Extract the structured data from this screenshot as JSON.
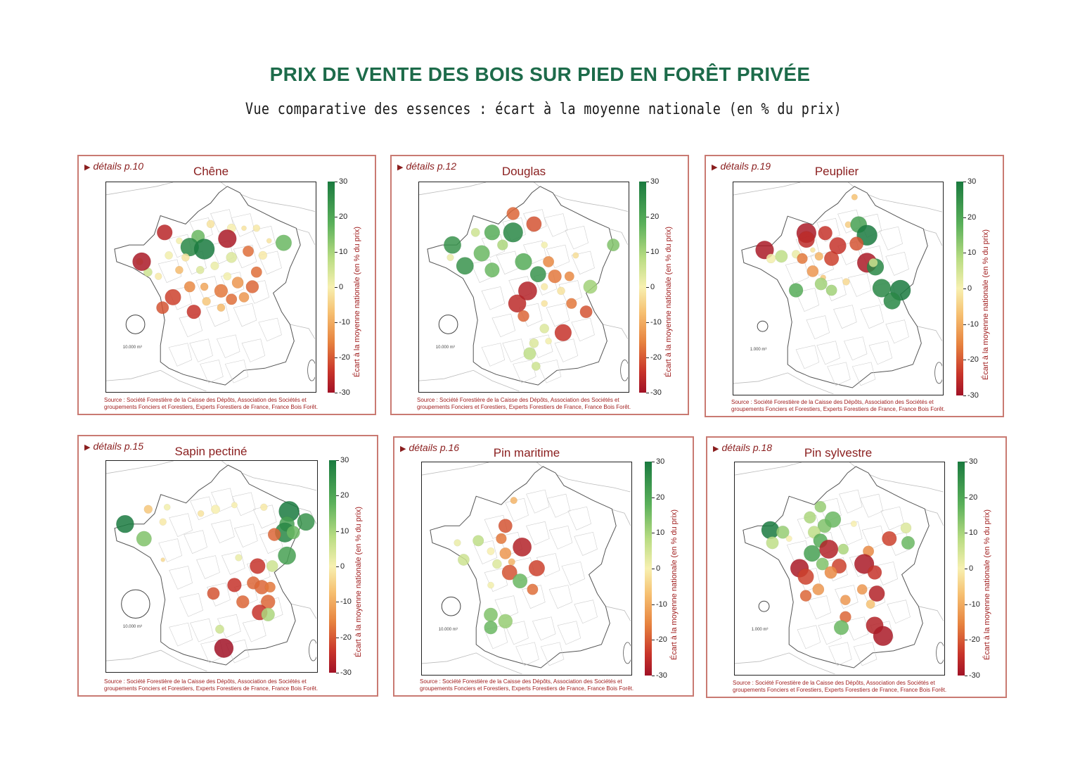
{
  "title": "PRIX DE VENTE DES BOIS SUR PIED EN FORÊT PRIVÉE",
  "subtitle": "Vue comparative des essences : écart à la moyenne nationale (en % du prix)",
  "colorbar": {
    "label": "Écart à la moyenne nationale (en % du prix)",
    "ticks": [
      "30",
      "20",
      "10",
      "0",
      "-10",
      "-20",
      "-30"
    ],
    "min": -30,
    "max": 30,
    "colors": [
      "#1a7a3f",
      "#5ab05a",
      "#b8dc82",
      "#f7f0b0",
      "#f6c071",
      "#e7833f",
      "#c8342a",
      "#a11226"
    ]
  },
  "source_line1": "Source : Société Forestière de la Caisse des Dépôts, Association des Sociétés et",
  "source_line2": "groupements Fonciers et Forestiers, Experts Forestiers de France, France Bois Forêt.",
  "panels": [
    {
      "species": "Chêne",
      "details": "détails p.10",
      "scale_label": "10.000 m³",
      "points": [
        {
          "x": 0.44,
          "y": 0.26,
          "v": 20
        },
        {
          "x": 0.4,
          "y": 0.31,
          "v": 28
        },
        {
          "x": 0.47,
          "y": 0.32,
          "v": 30
        },
        {
          "x": 0.35,
          "y": 0.28,
          "v": 5
        },
        {
          "x": 0.3,
          "y": 0.35,
          "v": 5
        },
        {
          "x": 0.38,
          "y": 0.36,
          "v": 2
        },
        {
          "x": 0.45,
          "y": 0.42,
          "v": 8
        },
        {
          "x": 0.52,
          "y": 0.4,
          "v": 6
        },
        {
          "x": 0.6,
          "y": 0.36,
          "v": 8
        },
        {
          "x": 0.68,
          "y": 0.33,
          "v": -15
        },
        {
          "x": 0.58,
          "y": 0.45,
          "v": 5
        },
        {
          "x": 0.63,
          "y": 0.48,
          "v": -10
        },
        {
          "x": 0.72,
          "y": 0.43,
          "v": -15
        },
        {
          "x": 0.7,
          "y": 0.5,
          "v": -16
        },
        {
          "x": 0.55,
          "y": 0.52,
          "v": -14
        },
        {
          "x": 0.47,
          "y": 0.5,
          "v": -8
        },
        {
          "x": 0.4,
          "y": 0.5,
          "v": -12
        },
        {
          "x": 0.48,
          "y": 0.57,
          "v": -3
        },
        {
          "x": 0.6,
          "y": 0.56,
          "v": -15
        },
        {
          "x": 0.66,
          "y": 0.55,
          "v": -10
        },
        {
          "x": 0.75,
          "y": 0.35,
          "v": 3
        },
        {
          "x": 0.78,
          "y": 0.28,
          "v": 2
        },
        {
          "x": 0.25,
          "y": 0.45,
          "v": 3
        },
        {
          "x": 0.16,
          "y": 0.38,
          "v": 0
        },
        {
          "x": 0.2,
          "y": 0.43,
          "v": 10
        },
        {
          "x": 0.35,
          "y": 0.42,
          "v": -5
        },
        {
          "x": 0.85,
          "y": 0.29,
          "v": 20
        },
        {
          "x": 0.27,
          "y": 0.6,
          "v": -18
        },
        {
          "x": 0.55,
          "y": 0.6,
          "v": -5
        },
        {
          "x": 0.6,
          "y": 0.22,
          "v": 4
        },
        {
          "x": 0.66,
          "y": 0.22,
          "v": 2
        },
        {
          "x": 0.72,
          "y": 0.22,
          "v": 3
        },
        {
          "x": 0.5,
          "y": 0.2,
          "v": 2
        },
        {
          "x": 0.28,
          "y": 0.24,
          "v": -25
        },
        {
          "x": 0.17,
          "y": 0.38,
          "v": -28
        },
        {
          "x": 0.32,
          "y": 0.55,
          "v": -20
        },
        {
          "x": 0.42,
          "y": 0.62,
          "v": -22
        },
        {
          "x": 0.58,
          "y": 0.27,
          "v": -28
        }
      ]
    },
    {
      "species": "Douglas",
      "details": "détails p.12",
      "scale_label": "10.000 m³",
      "points": [
        {
          "x": 0.27,
          "y": 0.24,
          "v": 10
        },
        {
          "x": 0.35,
          "y": 0.24,
          "v": 22
        },
        {
          "x": 0.45,
          "y": 0.24,
          "v": 28
        },
        {
          "x": 0.4,
          "y": 0.3,
          "v": 14
        },
        {
          "x": 0.16,
          "y": 0.3,
          "v": 26
        },
        {
          "x": 0.3,
          "y": 0.34,
          "v": 20
        },
        {
          "x": 0.15,
          "y": 0.36,
          "v": 6
        },
        {
          "x": 0.22,
          "y": 0.4,
          "v": 26
        },
        {
          "x": 0.55,
          "y": 0.2,
          "v": -18
        },
        {
          "x": 0.6,
          "y": 0.3,
          "v": 5
        },
        {
          "x": 0.62,
          "y": 0.38,
          "v": -12
        },
        {
          "x": 0.65,
          "y": 0.45,
          "v": -14
        },
        {
          "x": 0.72,
          "y": 0.45,
          "v": -12
        },
        {
          "x": 0.6,
          "y": 0.5,
          "v": 3
        },
        {
          "x": 0.68,
          "y": 0.52,
          "v": 2
        },
        {
          "x": 0.73,
          "y": 0.58,
          "v": -14
        },
        {
          "x": 0.6,
          "y": 0.58,
          "v": 2
        },
        {
          "x": 0.47,
          "y": 0.58,
          "v": -24
        },
        {
          "x": 0.5,
          "y": 0.64,
          "v": -16
        },
        {
          "x": 0.6,
          "y": 0.7,
          "v": 8
        },
        {
          "x": 0.69,
          "y": 0.72,
          "v": -22
        },
        {
          "x": 0.62,
          "y": 0.76,
          "v": 5
        },
        {
          "x": 0.55,
          "y": 0.77,
          "v": 8
        },
        {
          "x": 0.53,
          "y": 0.82,
          "v": 12
        },
        {
          "x": 0.56,
          "y": 0.88,
          "v": 10
        },
        {
          "x": 0.75,
          "y": 0.35,
          "v": 1
        },
        {
          "x": 0.82,
          "y": 0.5,
          "v": 15
        },
        {
          "x": 0.93,
          "y": 0.3,
          "v": 18
        },
        {
          "x": 0.45,
          "y": 0.15,
          "v": -16
        },
        {
          "x": 0.5,
          "y": 0.38,
          "v": 22
        },
        {
          "x": 0.57,
          "y": 0.44,
          "v": 26
        },
        {
          "x": 0.35,
          "y": 0.42,
          "v": 20
        },
        {
          "x": 0.52,
          "y": 0.52,
          "v": -26
        },
        {
          "x": 0.8,
          "y": 0.62,
          "v": -18
        }
      ]
    },
    {
      "species": "Peuplier",
      "details": "détails p.19",
      "scale_label": "1.000 m³",
      "points": [
        {
          "x": 0.58,
          "y": 0.07,
          "v": -4
        },
        {
          "x": 0.55,
          "y": 0.2,
          "v": -2
        },
        {
          "x": 0.35,
          "y": 0.24,
          "v": -28
        },
        {
          "x": 0.44,
          "y": 0.24,
          "v": -22
        },
        {
          "x": 0.6,
          "y": 0.2,
          "v": 24
        },
        {
          "x": 0.64,
          "y": 0.25,
          "v": 30
        },
        {
          "x": 0.38,
          "y": 0.32,
          "v": 2
        },
        {
          "x": 0.3,
          "y": 0.34,
          "v": 6
        },
        {
          "x": 0.23,
          "y": 0.35,
          "v": 12
        },
        {
          "x": 0.33,
          "y": 0.36,
          "v": -14
        },
        {
          "x": 0.41,
          "y": 0.35,
          "v": -6
        },
        {
          "x": 0.38,
          "y": 0.42,
          "v": -10
        },
        {
          "x": 0.43,
          "y": 0.45,
          "v": -3
        },
        {
          "x": 0.59,
          "y": 0.29,
          "v": -18
        },
        {
          "x": 0.64,
          "y": 0.38,
          "v": -28
        },
        {
          "x": 0.68,
          "y": 0.4,
          "v": 28
        },
        {
          "x": 0.42,
          "y": 0.48,
          "v": 15
        },
        {
          "x": 0.54,
          "y": 0.47,
          "v": 0
        },
        {
          "x": 0.67,
          "y": 0.38,
          "v": 10
        },
        {
          "x": 0.71,
          "y": 0.5,
          "v": 28
        },
        {
          "x": 0.8,
          "y": 0.51,
          "v": 30
        },
        {
          "x": 0.76,
          "y": 0.56,
          "v": 28
        },
        {
          "x": 0.15,
          "y": 0.32,
          "v": -28
        },
        {
          "x": 0.18,
          "y": 0.36,
          "v": 5
        },
        {
          "x": 0.3,
          "y": 0.51,
          "v": 22
        },
        {
          "x": 0.47,
          "y": 0.36,
          "v": -20
        },
        {
          "x": 0.5,
          "y": 0.3,
          "v": -22
        },
        {
          "x": 0.47,
          "y": 0.51,
          "v": 15
        },
        {
          "x": 0.35,
          "y": 0.27,
          "v": -24
        }
      ]
    },
    {
      "species": "Sapin pectiné",
      "details": "détails p.15",
      "scale_label": "10.000 m³",
      "points": [
        {
          "x": 0.09,
          "y": 0.3,
          "v": 30
        },
        {
          "x": 0.27,
          "y": 0.29,
          "v": 3
        },
        {
          "x": 0.2,
          "y": 0.23,
          "v": -3
        },
        {
          "x": 0.29,
          "y": 0.22,
          "v": 5
        },
        {
          "x": 0.45,
          "y": 0.25,
          "v": 2
        },
        {
          "x": 0.52,
          "y": 0.23,
          "v": 4
        },
        {
          "x": 0.61,
          "y": 0.21,
          "v": 4
        },
        {
          "x": 0.75,
          "y": 0.22,
          "v": 3
        },
        {
          "x": 0.87,
          "y": 0.24,
          "v": 30
        },
        {
          "x": 0.86,
          "y": 0.3,
          "v": 24
        },
        {
          "x": 0.95,
          "y": 0.29,
          "v": 26
        },
        {
          "x": 0.85,
          "y": 0.34,
          "v": 28
        },
        {
          "x": 0.89,
          "y": 0.34,
          "v": 20
        },
        {
          "x": 0.8,
          "y": 0.35,
          "v": -16
        },
        {
          "x": 0.86,
          "y": 0.45,
          "v": 24
        },
        {
          "x": 0.63,
          "y": 0.46,
          "v": 6
        },
        {
          "x": 0.72,
          "y": 0.5,
          "v": -22
        },
        {
          "x": 0.79,
          "y": 0.5,
          "v": 10
        },
        {
          "x": 0.61,
          "y": 0.59,
          "v": -22
        },
        {
          "x": 0.7,
          "y": 0.58,
          "v": -16
        },
        {
          "x": 0.74,
          "y": 0.6,
          "v": -16
        },
        {
          "x": 0.78,
          "y": 0.6,
          "v": -14
        },
        {
          "x": 0.65,
          "y": 0.67,
          "v": -16
        },
        {
          "x": 0.77,
          "y": 0.67,
          "v": -16
        },
        {
          "x": 0.51,
          "y": 0.63,
          "v": -18
        },
        {
          "x": 0.73,
          "y": 0.72,
          "v": -22
        },
        {
          "x": 0.77,
          "y": 0.73,
          "v": 14
        },
        {
          "x": 0.54,
          "y": 0.8,
          "v": 10
        },
        {
          "x": 0.56,
          "y": 0.89,
          "v": -30
        },
        {
          "x": 0.18,
          "y": 0.37,
          "v": 18
        },
        {
          "x": 0.27,
          "y": 0.47,
          "v": 0
        }
      ]
    },
    {
      "species": "Pin maritime",
      "details": "détails p.16",
      "scale_label": "10.000 m³",
      "points": [
        {
          "x": 0.44,
          "y": 0.18,
          "v": -6
        },
        {
          "x": 0.4,
          "y": 0.3,
          "v": -18
        },
        {
          "x": 0.48,
          "y": 0.4,
          "v": -26
        },
        {
          "x": 0.38,
          "y": 0.36,
          "v": -14
        },
        {
          "x": 0.33,
          "y": 0.42,
          "v": 4
        },
        {
          "x": 0.4,
          "y": 0.43,
          "v": -10
        },
        {
          "x": 0.43,
          "y": 0.47,
          "v": -6
        },
        {
          "x": 0.36,
          "y": 0.48,
          "v": 8
        },
        {
          "x": 0.42,
          "y": 0.52,
          "v": -18
        },
        {
          "x": 0.17,
          "y": 0.38,
          "v": 6
        },
        {
          "x": 0.27,
          "y": 0.37,
          "v": 12
        },
        {
          "x": 0.2,
          "y": 0.46,
          "v": 10
        },
        {
          "x": 0.33,
          "y": 0.58,
          "v": 5
        },
        {
          "x": 0.33,
          "y": 0.72,
          "v": 18
        },
        {
          "x": 0.4,
          "y": 0.75,
          "v": 16
        },
        {
          "x": 0.33,
          "y": 0.78,
          "v": 20
        },
        {
          "x": 0.47,
          "y": 0.56,
          "v": 20
        },
        {
          "x": 0.55,
          "y": 0.5,
          "v": -20
        },
        {
          "x": 0.53,
          "y": 0.6,
          "v": -15
        }
      ]
    },
    {
      "species": "Pin sylvestre",
      "details": "détails p.18",
      "scale_label": "1.000 m³",
      "points": [
        {
          "x": 0.41,
          "y": 0.21,
          "v": 16
        },
        {
          "x": 0.43,
          "y": 0.3,
          "v": 18
        },
        {
          "x": 0.38,
          "y": 0.33,
          "v": 12
        },
        {
          "x": 0.41,
          "y": 0.37,
          "v": 22
        },
        {
          "x": 0.37,
          "y": 0.43,
          "v": 24
        },
        {
          "x": 0.45,
          "y": 0.41,
          "v": -26
        },
        {
          "x": 0.52,
          "y": 0.41,
          "v": 14
        },
        {
          "x": 0.64,
          "y": 0.42,
          "v": -12
        },
        {
          "x": 0.62,
          "y": 0.48,
          "v": -28
        },
        {
          "x": 0.42,
          "y": 0.48,
          "v": 18
        },
        {
          "x": 0.5,
          "y": 0.49,
          "v": -20
        },
        {
          "x": 0.46,
          "y": 0.52,
          "v": -12
        },
        {
          "x": 0.67,
          "y": 0.52,
          "v": -22
        },
        {
          "x": 0.61,
          "y": 0.6,
          "v": -10
        },
        {
          "x": 0.4,
          "y": 0.6,
          "v": -10
        },
        {
          "x": 0.68,
          "y": 0.62,
          "v": -26
        },
        {
          "x": 0.53,
          "y": 0.65,
          "v": -10
        },
        {
          "x": 0.65,
          "y": 0.67,
          "v": -4
        },
        {
          "x": 0.53,
          "y": 0.73,
          "v": -16
        },
        {
          "x": 0.67,
          "y": 0.77,
          "v": -26
        },
        {
          "x": 0.71,
          "y": 0.82,
          "v": -28
        },
        {
          "x": 0.17,
          "y": 0.32,
          "v": 30
        },
        {
          "x": 0.23,
          "y": 0.33,
          "v": 16
        },
        {
          "x": 0.18,
          "y": 0.38,
          "v": 12
        },
        {
          "x": 0.26,
          "y": 0.36,
          "v": 4
        },
        {
          "x": 0.36,
          "y": 0.26,
          "v": 14
        },
        {
          "x": 0.47,
          "y": 0.27,
          "v": 20
        },
        {
          "x": 0.57,
          "y": 0.29,
          "v": 4
        },
        {
          "x": 0.74,
          "y": 0.36,
          "v": -20
        },
        {
          "x": 0.82,
          "y": 0.31,
          "v": 8
        },
        {
          "x": 0.83,
          "y": 0.38,
          "v": 20
        },
        {
          "x": 0.31,
          "y": 0.5,
          "v": -28
        },
        {
          "x": 0.34,
          "y": 0.54,
          "v": -20
        },
        {
          "x": 0.34,
          "y": 0.63,
          "v": -16
        },
        {
          "x": 0.51,
          "y": 0.78,
          "v": 20
        }
      ]
    }
  ]
}
